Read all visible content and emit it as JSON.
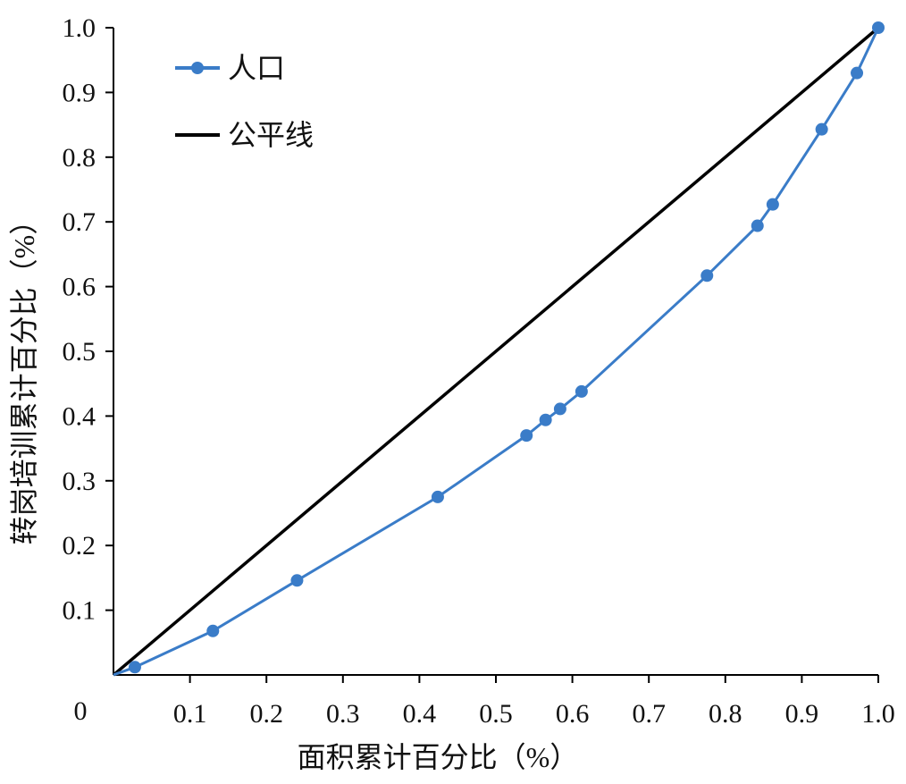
{
  "chart_data": {
    "type": "line",
    "xlabel": "面积累计百分比（%）",
    "ylabel": "转岗培训累计百分比（%）",
    "xlim": [
      0,
      1.0
    ],
    "ylim": [
      0,
      1.0
    ],
    "x_ticks": [
      "0.1",
      "0.2",
      "0.3",
      "0.4",
      "0.5",
      "0.6",
      "0.7",
      "0.8",
      "0.9",
      "1.0"
    ],
    "y_ticks": [
      "0.1",
      "0.2",
      "0.3",
      "0.4",
      "0.5",
      "0.6",
      "0.7",
      "0.8",
      "0.9",
      "1.0"
    ],
    "origin_label": "0",
    "grid": false,
    "legend_position": "top-left",
    "series": [
      {
        "name": "人口",
        "color": "#3a7cc8",
        "marker": "circle",
        "points": [
          [
            0.0,
            0.0
          ],
          [
            0.028,
            0.012
          ],
          [
            0.13,
            0.068
          ],
          [
            0.24,
            0.146
          ],
          [
            0.424,
            0.275
          ],
          [
            0.54,
            0.37
          ],
          [
            0.565,
            0.394
          ],
          [
            0.584,
            0.411
          ],
          [
            0.612,
            0.438
          ],
          [
            0.776,
            0.617
          ],
          [
            0.842,
            0.694
          ],
          [
            0.862,
            0.727
          ],
          [
            0.926,
            0.843
          ],
          [
            0.972,
            0.93
          ],
          [
            1.0,
            1.0
          ]
        ]
      },
      {
        "name": "公平线",
        "color": "#000000",
        "marker": "none",
        "points": [
          [
            0.0,
            0.0
          ],
          [
            1.0,
            1.0
          ]
        ]
      }
    ]
  }
}
